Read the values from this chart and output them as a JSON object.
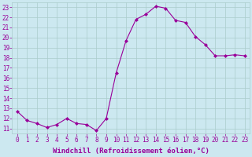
{
  "x": [
    0,
    1,
    2,
    3,
    4,
    5,
    6,
    7,
    8,
    9,
    10,
    11,
    12,
    13,
    14,
    15,
    16,
    17,
    18,
    19,
    20,
    21,
    22,
    23
  ],
  "y": [
    12.7,
    11.8,
    11.5,
    11.1,
    11.4,
    12.0,
    11.5,
    11.4,
    10.8,
    12.0,
    16.5,
    19.7,
    21.8,
    22.3,
    23.1,
    22.9,
    21.7,
    21.5,
    20.1,
    19.3,
    18.2,
    18.2,
    18.3,
    18.2
  ],
  "line_color": "#990099",
  "marker": "D",
  "marker_size": 2,
  "bg_color": "#cce8f0",
  "grid_color": "#aacccc",
  "xlabel": "Windchill (Refroidissement éolien,°C)",
  "xlabel_color": "#990099",
  "ylabel_ticks": [
    11,
    12,
    13,
    14,
    15,
    16,
    17,
    18,
    19,
    20,
    21,
    22,
    23
  ],
  "xlim": [
    -0.5,
    23.5
  ],
  "ylim": [
    10.5,
    23.5
  ],
  "tick_color": "#990099",
  "xlabel_fontsize": 6.5,
  "tick_fontsize": 5.5
}
